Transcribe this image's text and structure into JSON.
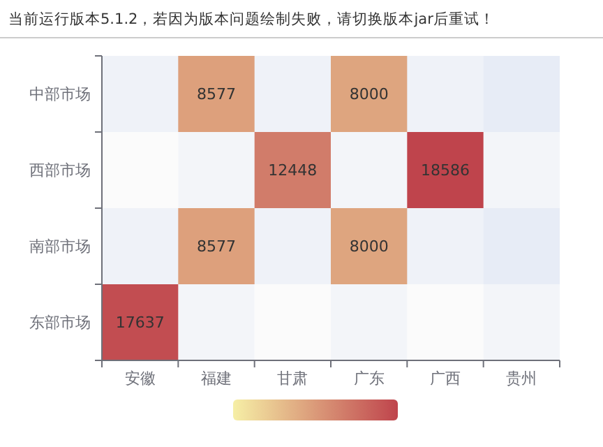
{
  "chart_data": {
    "type": "heatmap",
    "title": "当前运行版本5.1.2，若因为版本问题绘制失败，请切换版本jar后重试！",
    "categories": [
      "安徽",
      "福建",
      "甘肃",
      "广东",
      "广西",
      "贵州"
    ],
    "y_categories": [
      "中部市场",
      "西部市场",
      "南部市场",
      "东部市场"
    ],
    "cells": [
      [
        null,
        8577,
        null,
        8000,
        null,
        null
      ],
      [
        null,
        null,
        12448,
        null,
        18586,
        null
      ],
      [
        null,
        8577,
        null,
        8000,
        null,
        null
      ],
      [
        17637,
        null,
        null,
        null,
        null,
        null
      ]
    ],
    "data_labels": true
  }
}
